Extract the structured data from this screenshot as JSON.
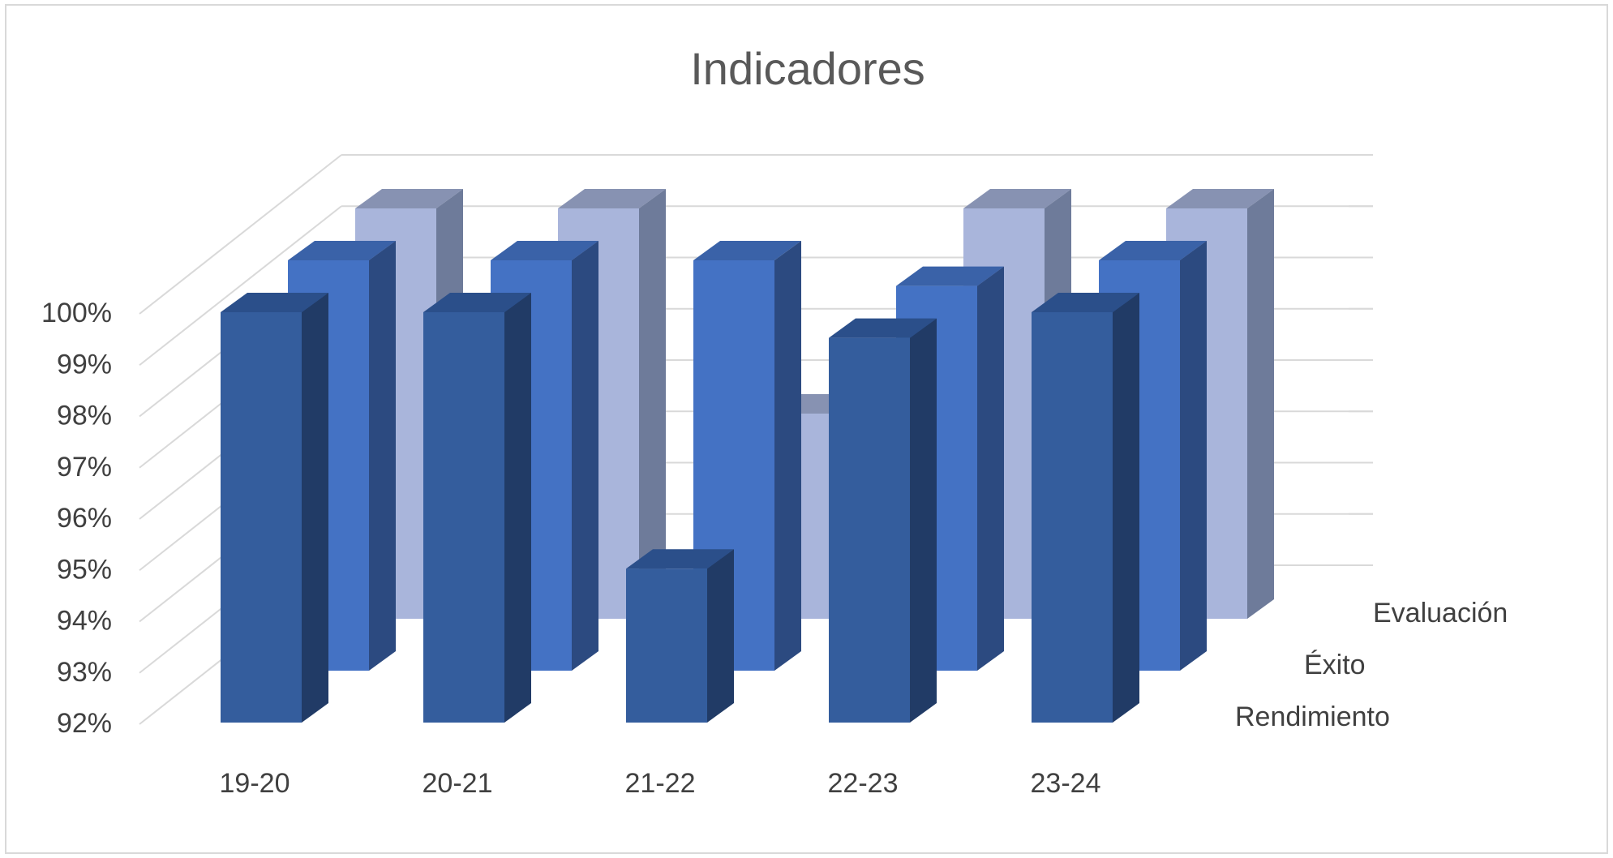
{
  "chart_data": {
    "type": "bar",
    "subtype": "3d-column",
    "title": "Indicadores",
    "categories": [
      "19-20",
      "20-21",
      "21-22",
      "22-23",
      "23-24"
    ],
    "yticks": [
      "92%",
      "93%",
      "94%",
      "95%",
      "96%",
      "97%",
      "98%",
      "99%",
      "100%"
    ],
    "ylim": [
      92,
      100
    ],
    "grid": true,
    "series": [
      {
        "name": "Rendimiento",
        "values": [
          100,
          100,
          95,
          99.5,
          100
        ]
      },
      {
        "name": "Éxito",
        "values": [
          100,
          100,
          100,
          99.5,
          100
        ]
      },
      {
        "name": "Evaluación",
        "values": [
          100,
          100,
          96,
          100,
          100
        ]
      }
    ],
    "colors": {
      "Rendimiento": {
        "front": "#345d9d",
        "side": "#213b66",
        "top": "#2b4f8a"
      },
      "Éxito": {
        "front": "#4472c4",
        "side": "#2c4a80",
        "top": "#3a62a8"
      },
      "Evaluación": {
        "front": "#a9b5db",
        "side": "#6e7b9a",
        "top": "#8792b2"
      }
    }
  }
}
